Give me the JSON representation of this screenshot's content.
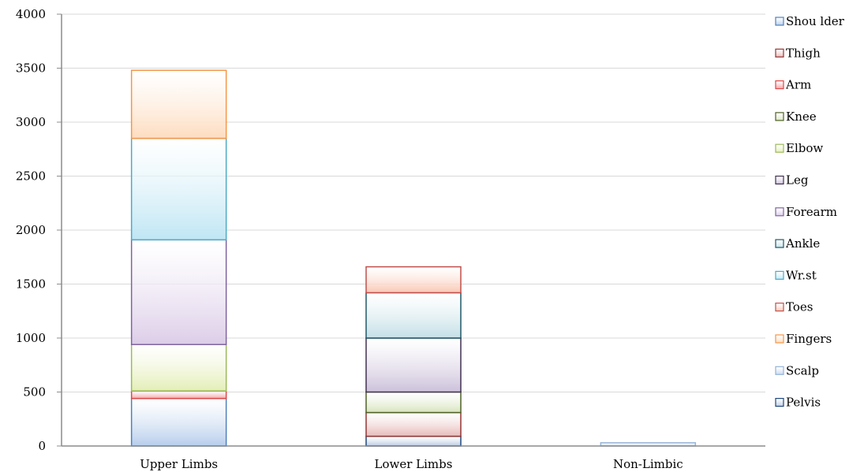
{
  "chart_data": {
    "type": "bar",
    "stacked": true,
    "categories": [
      "Upper Limbs",
      "Lower Limbs",
      "Non-Limbic"
    ],
    "ylim": [
      0,
      4000
    ],
    "yticks": [
      0,
      500,
      1000,
      1500,
      2000,
      2500,
      3000,
      3500,
      4000
    ],
    "grid": true,
    "legend_position": "right",
    "series": [
      {
        "name": "Shou lder",
        "values": [
          440,
          0,
          0
        ],
        "fill": "#b7cdec",
        "stroke": "#4f81bd"
      },
      {
        "name": "Thigh",
        "values": [
          0,
          0,
          0
        ],
        "fill": "#e6b9b8",
        "stroke": "#943634"
      },
      {
        "name": "Arm",
        "values": [
          70,
          0,
          0
        ],
        "fill": "#f4a0a0",
        "stroke": "#e0484a"
      },
      {
        "name": "Knee",
        "values": [
          0,
          0,
          0
        ],
        "fill": "#d7e4bd",
        "stroke": "#4f6228"
      },
      {
        "name": "Elbow",
        "values": [
          430,
          0,
          0
        ],
        "fill": "#e3eeb6",
        "stroke": "#9bbb59"
      },
      {
        "name": "Leg",
        "values": [
          0,
          0,
          0
        ],
        "fill": "#ccc1da",
        "stroke": "#403151"
      },
      {
        "name": "Forearm",
        "values": [
          970,
          0,
          0
        ],
        "fill": "#dccde8",
        "stroke": "#8064a2"
      },
      {
        "name": "Ankle",
        "values": [
          0,
          0,
          0
        ],
        "fill": "#c4dfe6",
        "stroke": "#215968"
      },
      {
        "name": "Wr.st",
        "values": [
          940,
          0,
          0
        ],
        "fill": "#bfe6f4",
        "stroke": "#4bacc6"
      },
      {
        "name": "Toes",
        "values": [
          0,
          0,
          0
        ],
        "fill": "#f9c8b4",
        "stroke": "#c0504d"
      },
      {
        "name": "Fingers",
        "values": [
          630,
          0,
          0
        ],
        "fill": "#fddcbf",
        "stroke": "#f79646"
      },
      {
        "name": "Scalp",
        "values": [
          0,
          0,
          30
        ],
        "fill": "#c6d9f1",
        "stroke": "#95b3d7"
      },
      {
        "name": "Pelvis",
        "values": [
          0,
          0,
          0
        ],
        "fill": "#b9c9e0",
        "stroke": "#1f497d"
      }
    ],
    "lower_limbs_stack": [
      {
        "name": "Pelvis",
        "value": 90
      },
      {
        "name": "Thigh",
        "value": 220
      },
      {
        "name": "Knee",
        "value": 190
      },
      {
        "name": "Leg",
        "value": 500
      },
      {
        "name": "Ankle",
        "value": 420
      },
      {
        "name": "Toes",
        "value": 240
      }
    ]
  }
}
